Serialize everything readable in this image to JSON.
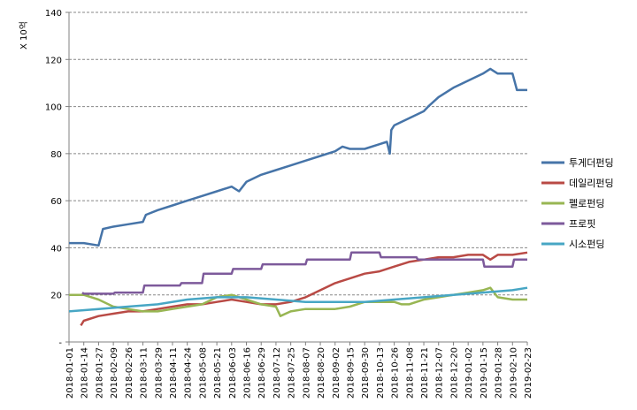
{
  "chart_data": {
    "type": "line",
    "title": "",
    "xlabel": "",
    "ylabel": "X 10억",
    "ylim": [
      0,
      140
    ],
    "yticks": [
      0,
      20,
      40,
      60,
      80,
      100,
      120,
      140
    ],
    "ytick_labels": [
      "-",
      "20",
      "40",
      "60",
      "80",
      "100",
      "120",
      "140"
    ],
    "grid": "horizontal-dashed",
    "legend_position": "right",
    "x_ticks": [
      "2018-01-01",
      "2018-01-14",
      "2018-01-27",
      "2018-02-09",
      "2018-02-26",
      "2018-03-11",
      "2018-03-29",
      "2018-04-11",
      "2018-04-24",
      "2018-05-08",
      "2018-05-21",
      "2018-06-03",
      "2018-06-16",
      "2018-06-29",
      "2018-07-12",
      "2018-07-25",
      "2018-08-07",
      "2018-08-20",
      "2018-09-02",
      "2018-09-15",
      "2018-09-30",
      "2018-10-13",
      "2018-10-26",
      "2018-11-08",
      "2018-11-21",
      "2018-12-07",
      "2018-12-20",
      "2019-01-02",
      "2019-01-15",
      "2019-01-28",
      "2019-02-10",
      "2019-02-23"
    ],
    "series": [
      {
        "name": "투게더펀딩",
        "color": "#4674a8",
        "points": [
          [
            0,
            42
          ],
          [
            1,
            42
          ],
          [
            2,
            41
          ],
          [
            2.3,
            48
          ],
          [
            3,
            49
          ],
          [
            4,
            50
          ],
          [
            5,
            51
          ],
          [
            5.2,
            54
          ],
          [
            6,
            56
          ],
          [
            7,
            58
          ],
          [
            8,
            60
          ],
          [
            9,
            62
          ],
          [
            10,
            64
          ],
          [
            11,
            66
          ],
          [
            11.5,
            64
          ],
          [
            12,
            68
          ],
          [
            13,
            71
          ],
          [
            14,
            73
          ],
          [
            15,
            75
          ],
          [
            16,
            77
          ],
          [
            17,
            79
          ],
          [
            18,
            81
          ],
          [
            18.5,
            83
          ],
          [
            19,
            82
          ],
          [
            20,
            82
          ],
          [
            21,
            84
          ],
          [
            21.5,
            85
          ],
          [
            21.7,
            80
          ],
          [
            21.8,
            90
          ],
          [
            22,
            92
          ],
          [
            23,
            95
          ],
          [
            24,
            98
          ],
          [
            24.3,
            100
          ],
          [
            25,
            104
          ],
          [
            26,
            108
          ],
          [
            27,
            111
          ],
          [
            28,
            114
          ],
          [
            28.5,
            116
          ],
          [
            29,
            114
          ],
          [
            30,
            114
          ],
          [
            30.3,
            107
          ],
          [
            31,
            107
          ]
        ]
      },
      {
        "name": "데일리펀딩",
        "color": "#b94a45",
        "points": [
          [
            0.8,
            7
          ],
          [
            1,
            9
          ],
          [
            2,
            11
          ],
          [
            3,
            12
          ],
          [
            4,
            13
          ],
          [
            5,
            13
          ],
          [
            6,
            14
          ],
          [
            7,
            15
          ],
          [
            8,
            16
          ],
          [
            9,
            16
          ],
          [
            10,
            17
          ],
          [
            11,
            18
          ],
          [
            12,
            17
          ],
          [
            13,
            16
          ],
          [
            14,
            16
          ],
          [
            15,
            17
          ],
          [
            16,
            19
          ],
          [
            17,
            22
          ],
          [
            18,
            25
          ],
          [
            19,
            27
          ],
          [
            20,
            29
          ],
          [
            21,
            30
          ],
          [
            22,
            32
          ],
          [
            23,
            34
          ],
          [
            24,
            35
          ],
          [
            25,
            36
          ],
          [
            26,
            36
          ],
          [
            27,
            37
          ],
          [
            28,
            37
          ],
          [
            28.5,
            35
          ],
          [
            29,
            37
          ],
          [
            30,
            37
          ],
          [
            31,
            38
          ]
        ]
      },
      {
        "name": "펠로펀딩",
        "color": "#98b653",
        "points": [
          [
            0,
            20
          ],
          [
            1,
            20
          ],
          [
            2,
            18
          ],
          [
            3,
            15
          ],
          [
            4,
            14
          ],
          [
            5,
            13
          ],
          [
            6,
            13
          ],
          [
            7,
            14
          ],
          [
            8,
            15
          ],
          [
            9,
            16
          ],
          [
            10,
            19
          ],
          [
            11,
            20
          ],
          [
            12,
            18
          ],
          [
            13,
            16
          ],
          [
            14,
            15
          ],
          [
            14.3,
            11
          ],
          [
            15,
            13
          ],
          [
            16,
            14
          ],
          [
            17,
            14
          ],
          [
            18,
            14
          ],
          [
            19,
            15
          ],
          [
            20,
            17
          ],
          [
            21,
            17
          ],
          [
            22,
            17
          ],
          [
            22.5,
            16
          ],
          [
            23,
            16
          ],
          [
            24,
            18
          ],
          [
            25,
            19
          ],
          [
            26,
            20
          ],
          [
            27,
            21
          ],
          [
            28,
            22
          ],
          [
            28.5,
            23
          ],
          [
            29,
            19
          ],
          [
            30,
            18
          ],
          [
            31,
            18
          ]
        ]
      },
      {
        "name": "프로핏",
        "color": "#7d5a9b",
        "points": [
          [
            0.9,
            21
          ],
          [
            1,
            20.5
          ],
          [
            3,
            20.5
          ],
          [
            3.1,
            21
          ],
          [
            5,
            21
          ],
          [
            5.1,
            24
          ],
          [
            7.5,
            24
          ],
          [
            7.6,
            25
          ],
          [
            9,
            25
          ],
          [
            9.1,
            29
          ],
          [
            11,
            29
          ],
          [
            11.1,
            31
          ],
          [
            13,
            31
          ],
          [
            13.1,
            33
          ],
          [
            16,
            33
          ],
          [
            16.1,
            35
          ],
          [
            19,
            35
          ],
          [
            19.1,
            38
          ],
          [
            21,
            38
          ],
          [
            21.1,
            36
          ],
          [
            23.5,
            36
          ],
          [
            23.6,
            35
          ],
          [
            28,
            35
          ],
          [
            28.1,
            32
          ],
          [
            30,
            32
          ],
          [
            30.1,
            35
          ],
          [
            31,
            35
          ]
        ]
      },
      {
        "name": "시소펀딩",
        "color": "#47a6c4",
        "points": [
          [
            0,
            13
          ],
          [
            2,
            14
          ],
          [
            4,
            15
          ],
          [
            6,
            16
          ],
          [
            8,
            18
          ],
          [
            10,
            19
          ],
          [
            12,
            19
          ],
          [
            14,
            18
          ],
          [
            16,
            17
          ],
          [
            18,
            17
          ],
          [
            20,
            17
          ],
          [
            22,
            18
          ],
          [
            24,
            19
          ],
          [
            26,
            20
          ],
          [
            28,
            21
          ],
          [
            30,
            22
          ],
          [
            31,
            23
          ]
        ]
      }
    ]
  }
}
